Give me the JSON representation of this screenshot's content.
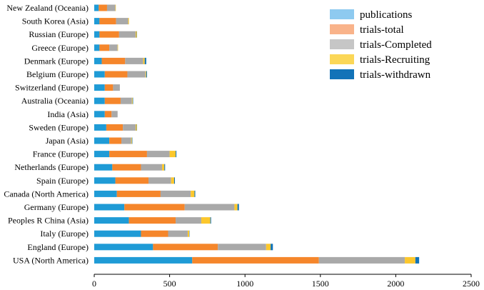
{
  "chart_data": {
    "type": "bar",
    "orientation": "horizontal",
    "stacked": true,
    "title": "",
    "xlabel": "",
    "ylabel": "",
    "xlim": [
      0,
      2500
    ],
    "xticks": [
      0,
      500,
      1000,
      1500,
      2000,
      2500
    ],
    "grid": false,
    "legend_position": "top-right",
    "categories": [
      "New Zealand (Oceania)",
      "South Korea (Asia)",
      "Russian (Europe)",
      "Greece (Europe)",
      "Denmark (Europe)",
      "Belgium (Europe)",
      "Switzerland (Europe)",
      "Australia (Oceania)",
      "India (Asia)",
      "Sweden (Europe)",
      "Japan (Asia)",
      "France (Europe)",
      "Netherlands (Europe)",
      "Spain (Europe)",
      "Canada (North America)",
      "Germany (Europe)",
      "Peoples R China (Asia)",
      "Italy (Europe)",
      "England (Europe)",
      "USA (North America)"
    ],
    "series": [
      {
        "name": "publications",
        "color": "#1f9bd6",
        "values": [
          30,
          35,
          35,
          35,
          50,
          70,
          70,
          70,
          70,
          80,
          100,
          100,
          120,
          140,
          150,
          200,
          230,
          310,
          390,
          650
        ]
      },
      {
        "name": "trials-total",
        "color": "#f5862b",
        "values": [
          55,
          110,
          130,
          65,
          155,
          150,
          55,
          105,
          45,
          110,
          80,
          250,
          190,
          220,
          290,
          400,
          310,
          180,
          430,
          840
        ]
      },
      {
        "name": "trials-Completed",
        "color": "#a9a9a9",
        "values": [
          55,
          80,
          110,
          55,
          120,
          120,
          45,
          75,
          40,
          85,
          65,
          150,
          140,
          150,
          200,
          330,
          170,
          130,
          320,
          570
        ]
      },
      {
        "name": "trials-Recruiting",
        "color": "#fcc72c",
        "values": [
          3,
          5,
          7,
          3,
          10,
          5,
          0,
          5,
          0,
          7,
          5,
          40,
          15,
          20,
          25,
          20,
          60,
          10,
          30,
          70
        ]
      },
      {
        "name": "trials-withdrawn",
        "color": "#1273b8",
        "values": [
          0,
          0,
          2,
          0,
          10,
          5,
          0,
          3,
          0,
          2,
          3,
          5,
          5,
          5,
          5,
          10,
          5,
          2,
          15,
          25
        ]
      }
    ]
  },
  "legend": {
    "items": [
      {
        "label": "publications",
        "color": "#8ecaf0"
      },
      {
        "label": "trials-total",
        "color": "#f9b38a"
      },
      {
        "label": "trials-Completed",
        "color": "#c6c6c6"
      },
      {
        "label": "trials-Recruiting",
        "color": "#fbd757"
      },
      {
        "label": "trials-withdrawn",
        "color": "#1273b8"
      }
    ]
  }
}
